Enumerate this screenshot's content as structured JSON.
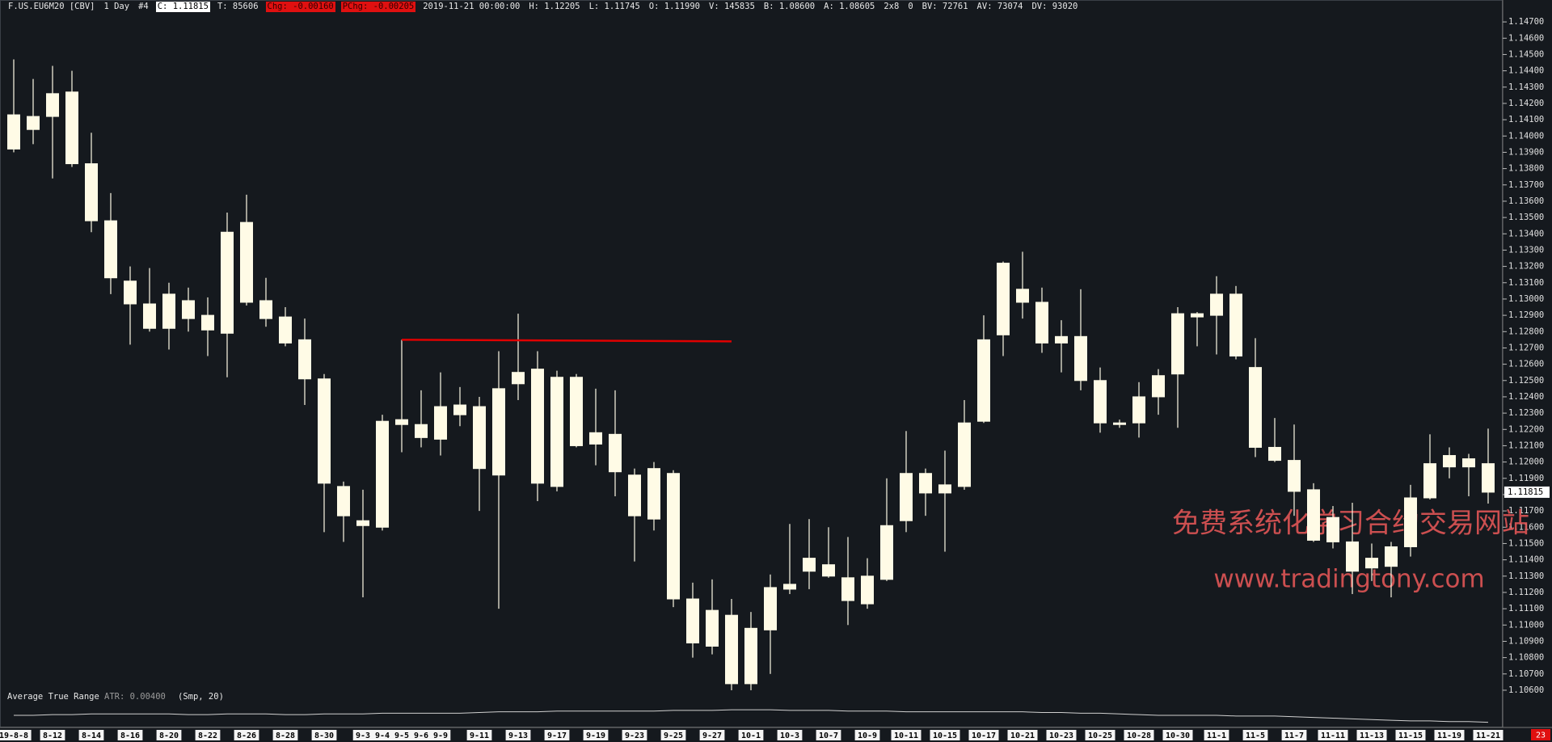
{
  "chart_data": {
    "type": "candlestick",
    "title": "F.US.EU6M20 [CBV]",
    "status": [
      {
        "text": "1 Day",
        "highlight": null
      },
      {
        "text": "#4",
        "highlight": null
      },
      {
        "text": "C: 1.11815",
        "highlight": "#ffffff"
      },
      {
        "text": "T: 85606",
        "highlight": null
      },
      {
        "text": "Chg: -0.00160",
        "highlight": "#e01010"
      },
      {
        "text": "PChg: -0.00205",
        "highlight": "#e01010"
      },
      {
        "text": "2019-11-21 00:00:00",
        "highlight": null
      },
      {
        "text": "H: 1.12205",
        "highlight": null
      },
      {
        "text": "L: 1.11745",
        "highlight": null
      },
      {
        "text": "O: 1.11990",
        "highlight": null
      },
      {
        "text": "V: 145835",
        "highlight": null
      },
      {
        "text": "B: 1.08600",
        "highlight": null
      },
      {
        "text": "A: 1.08605",
        "highlight": null
      },
      {
        "text": "2x8",
        "highlight": null
      },
      {
        "text": "0",
        "highlight": null
      },
      {
        "text": "BV: 72761",
        "highlight": null
      },
      {
        "text": "AV: 73074",
        "highlight": null
      },
      {
        "text": "DV: 93020",
        "highlight": null
      }
    ],
    "categories": [
      "19-8-8",
      null,
      "8-12",
      null,
      "8-14",
      null,
      "8-16",
      null,
      "8-20",
      null,
      "8-22",
      null,
      "8-26",
      null,
      "8-28",
      null,
      "8-30",
      null,
      "9-3",
      "9-4",
      "9-5",
      "9-6",
      "9-9",
      null,
      "9-11",
      null,
      "9-13",
      null,
      "9-17",
      null,
      "9-19",
      null,
      "9-23",
      null,
      "9-25",
      null,
      "9-27",
      null,
      "10-1",
      null,
      "10-3",
      null,
      "10-7",
      null,
      "10-9",
      null,
      "10-11",
      null,
      "10-15",
      null,
      "10-17",
      null,
      "10-21",
      null,
      "10-23",
      null,
      "10-25",
      null,
      "10-28",
      null,
      "10-30",
      null,
      "11-1",
      null,
      "11-5",
      null,
      "11-7",
      null,
      "11-11",
      null,
      "11-13",
      null,
      "11-15",
      null,
      "11-19",
      null,
      "11-21"
    ],
    "open": [
      1.1413,
      1.1404,
      1.1412,
      1.1427,
      1.1383,
      1.1348,
      1.1311,
      1.1297,
      1.1282,
      1.1288,
      1.129,
      1.1279,
      1.1347,
      1.1299,
      1.1289,
      1.1275,
      1.1251,
      1.1185,
      1.1161,
      1.116,
      1.1223,
      1.1223,
      1.1214,
      1.1229,
      1.1234,
      1.1192,
      1.1248,
      1.1257,
      1.1185,
      1.1252,
      1.1218,
      1.1217,
      1.1192,
      1.1165,
      1.1193,
      1.1116,
      1.1087,
      1.1106,
      1.1064,
      1.1097,
      1.1122,
      1.1133,
      1.1137,
      1.1129,
      1.1113,
      1.1128,
      1.1164,
      1.1181,
      1.1186,
      1.1185,
      1.1225,
      1.1278,
      1.1306,
      1.1298,
      1.1273,
      1.1277,
      1.125,
      1.1224,
      1.1224,
      1.124,
      1.1254,
      1.1289,
      1.129,
      1.1303,
      1.1258,
      1.1209,
      1.1201,
      1.1183,
      1.1166,
      1.1151,
      1.1135,
      1.1136,
      1.1148,
      1.1178,
      1.1197,
      1.1202,
      1.1199
    ],
    "high": [
      1.1447,
      1.1435,
      1.1443,
      1.144,
      1.1402,
      1.1365,
      1.132,
      1.1319,
      1.131,
      1.1307,
      1.1301,
      1.1353,
      1.1364,
      1.1313,
      1.1295,
      1.1288,
      1.1254,
      1.1188,
      1.1183,
      1.1229,
      1.1275,
      1.1244,
      1.1255,
      1.1246,
      1.124,
      1.1268,
      1.1291,
      1.1268,
      1.1256,
      1.1254,
      1.1245,
      1.1244,
      1.1196,
      1.12,
      1.1195,
      1.1126,
      1.1128,
      1.1116,
      1.1108,
      1.1131,
      1.1162,
      1.1165,
      1.116,
      1.1154,
      1.1141,
      1.119,
      1.1219,
      1.1196,
      1.1207,
      1.1238,
      1.129,
      1.1323,
      1.1329,
      1.1307,
      1.1287,
      1.1306,
      1.1258,
      1.1226,
      1.1249,
      1.1257,
      1.1295,
      1.1292,
      1.1314,
      1.1308,
      1.1276,
      1.1227,
      1.1223,
      1.1187,
      1.1173,
      1.1175,
      1.115,
      1.1151,
      1.1186,
      1.1217,
      1.1209,
      1.1205,
      1.12205
    ],
    "low": [
      1.139,
      1.1395,
      1.1374,
      1.1381,
      1.1341,
      1.1303,
      1.1272,
      1.128,
      1.1269,
      1.128,
      1.1265,
      1.1252,
      1.1296,
      1.1283,
      1.1271,
      1.1235,
      1.1157,
      1.1151,
      1.1117,
      1.1158,
      1.1206,
      1.1209,
      1.1204,
      1.1222,
      1.117,
      1.111,
      1.1238,
      1.1176,
      1.1182,
      1.1209,
      1.1198,
      1.1179,
      1.1139,
      1.1158,
      1.1111,
      1.108,
      1.1082,
      1.106,
      1.106,
      1.107,
      1.1119,
      1.1122,
      1.1129,
      1.11,
      1.111,
      1.1127,
      1.1157,
      1.1167,
      1.1145,
      1.1183,
      1.1224,
      1.1265,
      1.1288,
      1.1267,
      1.1255,
      1.1244,
      1.1218,
      1.1221,
      1.1215,
      1.1229,
      1.1221,
      1.1271,
      1.1266,
      1.1263,
      1.1203,
      1.12,
      1.1167,
      1.1151,
      1.1147,
      1.1119,
      1.1127,
      1.1117,
      1.1142,
      1.1177,
      1.119,
      1.1179,
      1.11745
    ],
    "close": [
      1.1392,
      1.1412,
      1.1426,
      1.1383,
      1.1348,
      1.1313,
      1.1297,
      1.1282,
      1.1303,
      1.1299,
      1.1281,
      1.1341,
      1.1298,
      1.1288,
      1.1273,
      1.1251,
      1.1187,
      1.1167,
      1.1164,
      1.1225,
      1.1226,
      1.1215,
      1.1234,
      1.1235,
      1.1196,
      1.1245,
      1.1255,
      1.1187,
      1.1252,
      1.121,
      1.1211,
      1.1194,
      1.1167,
      1.1196,
      1.1116,
      1.1089,
      1.1109,
      1.1064,
      1.1098,
      1.1123,
      1.1125,
      1.1141,
      1.113,
      1.1115,
      1.113,
      1.1161,
      1.1193,
      1.1193,
      1.1181,
      1.1224,
      1.1275,
      1.1322,
      1.1298,
      1.1273,
      1.1277,
      1.125,
      1.1224,
      1.1223,
      1.124,
      1.1253,
      1.1291,
      1.1291,
      1.1303,
      1.1265,
      1.1209,
      1.1201,
      1.1182,
      1.1152,
      1.1151,
      1.1133,
      1.1141,
      1.1148,
      1.1178,
      1.1199,
      1.1204,
      1.1197,
      1.11815
    ],
    "color": "#fffbe6",
    "ylim": [
      1.1057,
      1.1476
    ],
    "yticks": [
      {
        "value": 1.106,
        "label": "1.10600"
      },
      {
        "value": 1.107,
        "label": "1.10700"
      },
      {
        "value": 1.108,
        "label": "1.10800"
      },
      {
        "value": 1.109,
        "label": "1.10900"
      },
      {
        "value": 1.11,
        "label": "1.11000"
      },
      {
        "value": 1.111,
        "label": "1.11100"
      },
      {
        "value": 1.112,
        "label": "1.11200"
      },
      {
        "value": 1.113,
        "label": "1.11300"
      },
      {
        "value": 1.114,
        "label": "1.11400"
      },
      {
        "value": 1.115,
        "label": "1.11500"
      },
      {
        "value": 1.116,
        "label": "1.11600"
      },
      {
        "value": 1.117,
        "label": "1.11700"
      },
      {
        "value": 1.118,
        "label": "1.11800"
      },
      {
        "value": 1.119,
        "label": "1.11900"
      },
      {
        "value": 1.12,
        "label": "1.12000"
      },
      {
        "value": 1.121,
        "label": "1.12100"
      },
      {
        "value": 1.122,
        "label": "1.12200"
      },
      {
        "value": 1.123,
        "label": "1.12300"
      },
      {
        "value": 1.124,
        "label": "1.12400"
      },
      {
        "value": 1.125,
        "label": "1.12500"
      },
      {
        "value": 1.126,
        "label": "1.12600"
      },
      {
        "value": 1.127,
        "label": "1.12700"
      },
      {
        "value": 1.128,
        "label": "1.12800"
      },
      {
        "value": 1.129,
        "label": "1.12900"
      },
      {
        "value": 1.13,
        "label": "1.13000"
      },
      {
        "value": 1.131,
        "label": "1.13100"
      },
      {
        "value": 1.132,
        "label": "1.13200"
      },
      {
        "value": 1.133,
        "label": "1.13300"
      },
      {
        "value": 1.134,
        "label": "1.13400"
      },
      {
        "value": 1.135,
        "label": "1.13500"
      },
      {
        "value": 1.136,
        "label": "1.13600"
      },
      {
        "value": 1.137,
        "label": "1.13700"
      },
      {
        "value": 1.138,
        "label": "1.13800"
      },
      {
        "value": 1.139,
        "label": "1.13900"
      },
      {
        "value": 1.14,
        "label": "1.14000"
      },
      {
        "value": 1.141,
        "label": "1.14100"
      },
      {
        "value": 1.142,
        "label": "1.14200"
      },
      {
        "value": 1.143,
        "label": "1.14300"
      },
      {
        "value": 1.144,
        "label": "1.14400"
      },
      {
        "value": 1.145,
        "label": "1.14500"
      },
      {
        "value": 1.146,
        "label": "1.14600"
      },
      {
        "value": 1.147,
        "label": "1.14700"
      }
    ],
    "last_price": {
      "value": 1.11815,
      "label": "1.11815"
    },
    "trendline": {
      "start": [
        20,
        1.1275
      ],
      "end": [
        37,
        1.1274
      ],
      "color": "#e00000"
    },
    "watermark": [
      "免费系统化学习合约交易网站",
      "www.tradingtony.com"
    ],
    "x_cursor_label": "23",
    "atr": {
      "name": "Average True Range",
      "label": "ATR: 0.00400",
      "params": "(Smp, 20)",
      "color": "#cfcfcf",
      "ylim": [
        0.0035,
        0.0065
      ],
      "values": [
        0.005,
        0.005,
        0.0051,
        0.0051,
        0.0052,
        0.0052,
        0.0052,
        0.0052,
        0.0052,
        0.0051,
        0.0051,
        0.0052,
        0.0052,
        0.0052,
        0.0051,
        0.0051,
        0.0052,
        0.0052,
        0.0052,
        0.0053,
        0.0053,
        0.0053,
        0.0053,
        0.0053,
        0.0054,
        0.0055,
        0.0055,
        0.0055,
        0.0056,
        0.0056,
        0.0056,
        0.0056,
        0.0056,
        0.0056,
        0.0057,
        0.0057,
        0.0057,
        0.0058,
        0.0058,
        0.0058,
        0.0057,
        0.0057,
        0.0057,
        0.0056,
        0.0056,
        0.0056,
        0.0055,
        0.0055,
        0.0055,
        0.0055,
        0.0055,
        0.0055,
        0.0055,
        0.0054,
        0.0054,
        0.0053,
        0.0053,
        0.0052,
        0.0051,
        0.005,
        0.005,
        0.005,
        0.005,
        0.0049,
        0.0049,
        0.0049,
        0.0048,
        0.0047,
        0.0046,
        0.0045,
        0.0044,
        0.0043,
        0.0042,
        0.0042,
        0.0041,
        0.0041,
        0.004
      ]
    }
  }
}
